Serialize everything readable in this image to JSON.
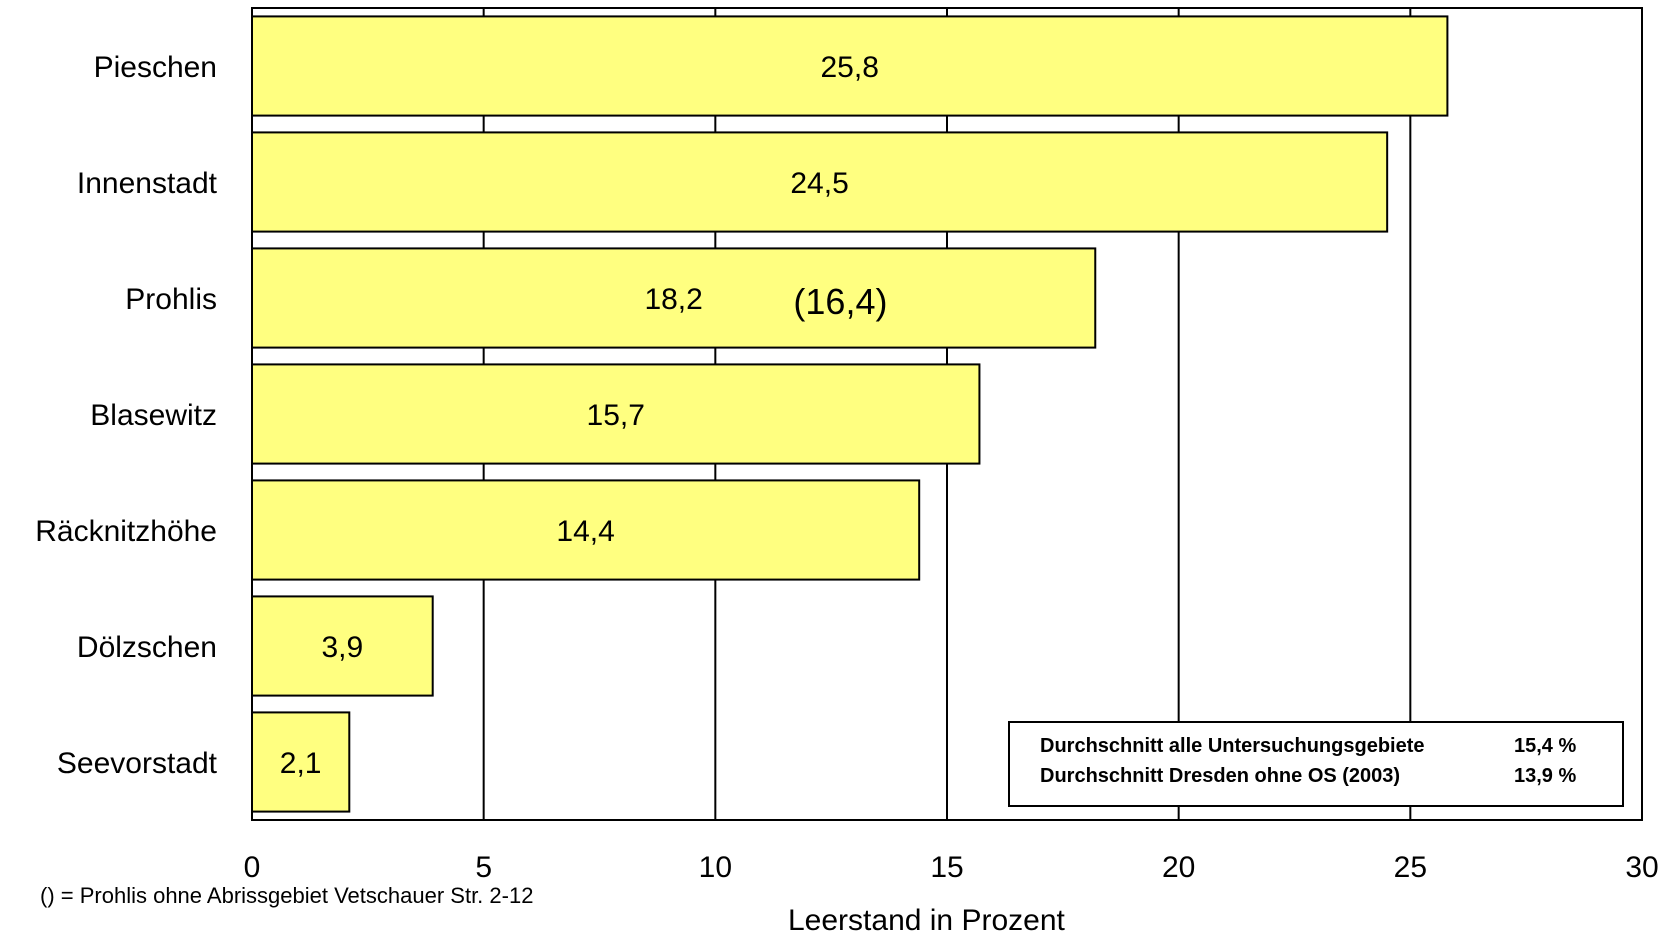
{
  "chart_data": {
    "type": "bar",
    "orientation": "horizontal",
    "categories": [
      "Pieschen",
      "Innenstadt",
      "Prohlis",
      "Blasewitz",
      "Räcknitzhöhe",
      "Dölzschen",
      "Seevorstadt"
    ],
    "values": [
      25.8,
      24.5,
      18.2,
      15.7,
      14.4,
      3.9,
      2.1
    ],
    "value_labels": [
      "25,8",
      "24,5",
      "18,2",
      "15,7",
      "14,4",
      "3,9",
      "2,1"
    ],
    "annotation": {
      "category": "Prohlis",
      "text": "(16,4)"
    },
    "xlabel": "Leerstand in Prozent",
    "xlim": [
      0,
      30
    ],
    "xticks": [
      0,
      5,
      10,
      15,
      20,
      25,
      30
    ],
    "grid": "vertical",
    "bar_color": "#ffff80",
    "legend_placement": "bottom-right",
    "legend": [
      {
        "label": "Durchschnitt alle Untersuchungsgebiete",
        "value": "15,4 %"
      },
      {
        "label": "Durchschnitt Dresden ohne OS (2003)",
        "value": "13,9 %"
      }
    ],
    "footnote": "() = Prohlis ohne Abrissgebiet Vetschauer Str. 2-12"
  }
}
